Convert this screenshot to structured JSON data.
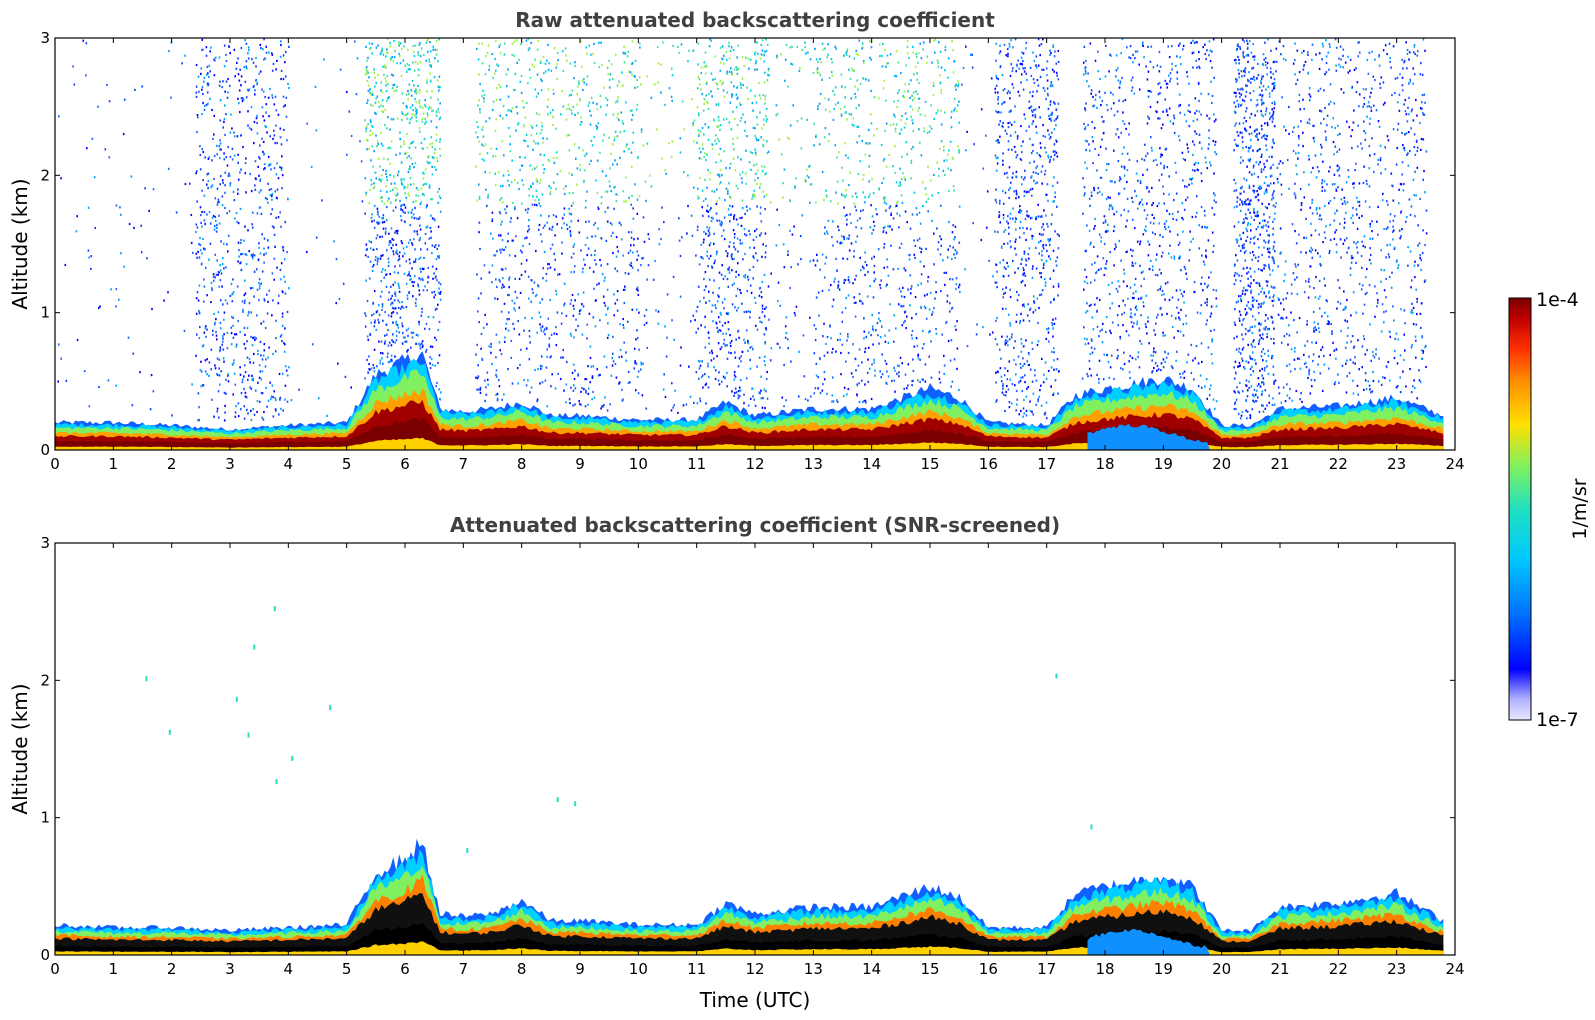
{
  "chart_data": [
    {
      "type": "heatmap",
      "title": "Raw attenuated backscattering coefficient",
      "xlabel": "",
      "ylabel": "Altitude (km)",
      "xlim": [
        0,
        24
      ],
      "ylim": [
        0,
        3
      ],
      "xticks": [
        0,
        1,
        2,
        3,
        4,
        5,
        6,
        7,
        8,
        9,
        10,
        11,
        12,
        13,
        14,
        15,
        16,
        17,
        18,
        19,
        20,
        21,
        22,
        23,
        24
      ],
      "yticks": [
        0,
        1,
        2,
        3
      ],
      "layer_top_km": [
        [
          0,
          0.2
        ],
        [
          1,
          0.2
        ],
        [
          2,
          0.18
        ],
        [
          3,
          0.15
        ],
        [
          4,
          0.18
        ],
        [
          5,
          0.2
        ],
        [
          5.5,
          0.55
        ],
        [
          6,
          0.65
        ],
        [
          6.3,
          0.7
        ],
        [
          6.6,
          0.3
        ],
        [
          7,
          0.28
        ],
        [
          7.5,
          0.3
        ],
        [
          8,
          0.35
        ],
        [
          8.5,
          0.25
        ],
        [
          9,
          0.25
        ],
        [
          10,
          0.22
        ],
        [
          11,
          0.22
        ],
        [
          11.5,
          0.35
        ],
        [
          12,
          0.25
        ],
        [
          13,
          0.3
        ],
        [
          13.5,
          0.3
        ],
        [
          14,
          0.3
        ],
        [
          15,
          0.45
        ],
        [
          15.5,
          0.38
        ],
        [
          16,
          0.2
        ],
        [
          17,
          0.18
        ],
        [
          17.5,
          0.4
        ],
        [
          18,
          0.45
        ],
        [
          19,
          0.52
        ],
        [
          19.5,
          0.45
        ],
        [
          20,
          0.18
        ],
        [
          20.5,
          0.18
        ],
        [
          21,
          0.3
        ],
        [
          22,
          0.32
        ],
        [
          23,
          0.38
        ],
        [
          23.8,
          0.25
        ]
      ],
      "noise_above_layer": true
    },
    {
      "type": "heatmap",
      "title": "Attenuated backscattering coefficient (SNR-screened)",
      "xlabel": "Time (UTC)",
      "ylabel": "Altitude (km)",
      "xlim": [
        0,
        24
      ],
      "ylim": [
        0,
        3
      ],
      "xticks": [
        0,
        1,
        2,
        3,
        4,
        5,
        6,
        7,
        8,
        9,
        10,
        11,
        12,
        13,
        14,
        15,
        16,
        17,
        18,
        19,
        20,
        21,
        22,
        23,
        24
      ],
      "yticks": [
        0,
        1,
        2,
        3
      ],
      "layer_top_km": [
        [
          0,
          0.22
        ],
        [
          1,
          0.2
        ],
        [
          2,
          0.2
        ],
        [
          3,
          0.18
        ],
        [
          4,
          0.2
        ],
        [
          5,
          0.22
        ],
        [
          5.5,
          0.6
        ],
        [
          6,
          0.7
        ],
        [
          6.3,
          0.82
        ],
        [
          6.6,
          0.3
        ],
        [
          7,
          0.28
        ],
        [
          7.5,
          0.3
        ],
        [
          8,
          0.4
        ],
        [
          8.5,
          0.25
        ],
        [
          9,
          0.25
        ],
        [
          10,
          0.22
        ],
        [
          11,
          0.22
        ],
        [
          11.5,
          0.38
        ],
        [
          12,
          0.3
        ],
        [
          13,
          0.35
        ],
        [
          13.5,
          0.35
        ],
        [
          14,
          0.35
        ],
        [
          15,
          0.5
        ],
        [
          15.5,
          0.42
        ],
        [
          16,
          0.2
        ],
        [
          17,
          0.2
        ],
        [
          17.5,
          0.45
        ],
        [
          18,
          0.5
        ],
        [
          19,
          0.58
        ],
        [
          19.5,
          0.5
        ],
        [
          20,
          0.18
        ],
        [
          20.5,
          0.18
        ],
        [
          21,
          0.35
        ],
        [
          22,
          0.38
        ],
        [
          23,
          0.45
        ],
        [
          23.8,
          0.25
        ]
      ],
      "noise_above_layer": false
    }
  ],
  "colorbar": {
    "label": "1/m/sr",
    "max_label": "1e-4",
    "min_label": "1e-7",
    "colors": [
      "#e8e8ff",
      "#b0b0ff",
      "#4040ff",
      "#0000ff",
      "#0070ff",
      "#00c8ff",
      "#20e0c0",
      "#80f060",
      "#d0f020",
      "#ffe000",
      "#ff9000",
      "#ff3000",
      "#c00000",
      "#7a0000"
    ]
  }
}
